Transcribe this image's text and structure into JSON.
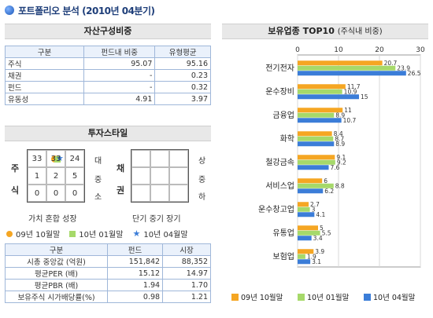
{
  "header": {
    "title": "포트폴리오 분석 (2010년 04분기)"
  },
  "asset": {
    "title": "자산구성비중",
    "columns": [
      "구분",
      "펀드내 비중",
      "유형평균"
    ],
    "rows": [
      [
        "주식",
        "95.07",
        "95.16"
      ],
      [
        "채권",
        "-",
        "0.23"
      ],
      [
        "펀드",
        "-",
        "0.32"
      ],
      [
        "유동성",
        "4.91",
        "3.97"
      ]
    ]
  },
  "style": {
    "title": "투자스타일",
    "stock_label": [
      "주",
      "식"
    ],
    "bond_label": [
      "채",
      "권"
    ],
    "stock_cells": [
      "33",
      "",
      "24",
      "1",
      "2",
      "5",
      "0",
      "0",
      "0"
    ],
    "stock_marked_value": "33",
    "size_labels": [
      "대",
      "중",
      "소"
    ],
    "bond_size_labels": [
      "상",
      "중",
      "하"
    ],
    "stock_bottom": "가치 혼합 성장",
    "bond_bottom": "단기 중기 장기",
    "legend": [
      "09년 10월말",
      "10년 01월말",
      "10년 04월말"
    ]
  },
  "stats": {
    "columns": [
      "구분",
      "펀드",
      "시장"
    ],
    "rows": [
      [
        "시총 중앙값 (억원)",
        "151,842",
        "88,352"
      ],
      [
        "평균PER (배)",
        "15.12",
        "14.97"
      ],
      [
        "평균PBR (배)",
        "1.94",
        "1.70"
      ],
      [
        "보유주식 시가배당률(%)",
        "0.98",
        "1.21"
      ]
    ]
  },
  "chart_data": {
    "type": "bar",
    "orientation": "horizontal",
    "title": "보유업종 TOP10",
    "subtitle": "(주식내 비중)",
    "categories": [
      "전기전자",
      "운수장비",
      "금융업",
      "화학",
      "철강금속",
      "서비스업",
      "운수창고업",
      "유통업",
      "보험업"
    ],
    "series": [
      {
        "name": "09년 10월말",
        "color": "#f5a623",
        "values": [
          20.7,
          11.7,
          11,
          8.4,
          9.1,
          6,
          2.7,
          5,
          3.9
        ]
      },
      {
        "name": "10년 01월말",
        "color": "#a6d96a",
        "values": [
          23.9,
          10.9,
          8.9,
          8.7,
          9.2,
          8.8,
          3,
          5.5,
          1.9
        ]
      },
      {
        "name": "10년 04월말",
        "color": "#3b7dd8",
        "values": [
          26.5,
          15,
          10.7,
          8.9,
          7.6,
          6.2,
          4.1,
          3.4,
          3.1
        ]
      }
    ],
    "xlim": [
      0,
      30
    ],
    "xticks": [
      "0",
      "10",
      "20",
      "30"
    ],
    "grid": true,
    "legend": "bottom"
  }
}
